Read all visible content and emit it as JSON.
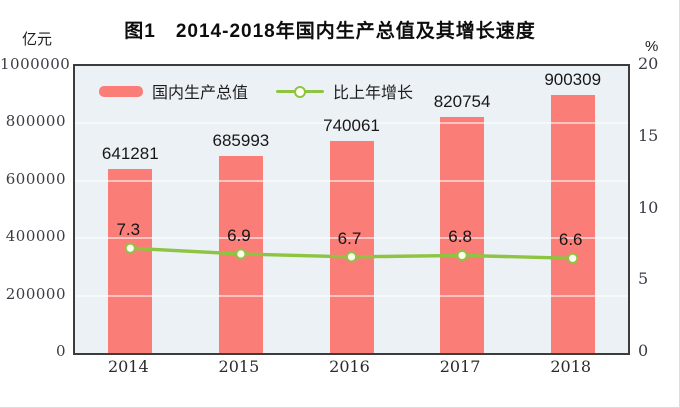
{
  "chart_data": {
    "type": "bar+line",
    "title": "图1　2014-2018年国内生产总值及其增长速度",
    "left_axis_label": "亿元",
    "right_axis_label": "%",
    "categories": [
      "2014",
      "2015",
      "2016",
      "2017",
      "2018"
    ],
    "series": [
      {
        "name": "国内生产总值",
        "type": "bar",
        "axis": "left",
        "color": "#fa7d78",
        "values": [
          641281,
          685993,
          740061,
          820754,
          900309
        ]
      },
      {
        "name": "比上年增长",
        "type": "line",
        "axis": "right",
        "color": "#8fc443",
        "marker_fill": "#fdfef2",
        "values": [
          7.3,
          6.9,
          6.7,
          6.8,
          6.6
        ]
      }
    ],
    "left_axis": {
      "min": 0,
      "max": 1000000,
      "ticks": [
        0,
        200000,
        400000,
        600000,
        800000,
        1000000
      ]
    },
    "right_axis": {
      "min": 0,
      "max": 20,
      "ticks": [
        0,
        5,
        10,
        15,
        20
      ]
    },
    "grid": true,
    "legend_position": "top-left-inside",
    "plot_background": "#ecf1f6"
  }
}
